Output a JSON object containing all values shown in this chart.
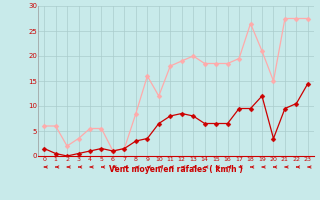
{
  "x": [
    0,
    1,
    2,
    3,
    4,
    5,
    6,
    7,
    8,
    9,
    10,
    11,
    12,
    13,
    14,
    15,
    16,
    17,
    18,
    19,
    20,
    21,
    22,
    23
  ],
  "y_moyen": [
    1.5,
    0.5,
    0.0,
    0.5,
    1.0,
    1.5,
    1.0,
    1.5,
    3.0,
    3.5,
    6.5,
    8.0,
    8.5,
    8.0,
    6.5,
    6.5,
    6.5,
    9.5,
    9.5,
    12.0,
    3.5,
    9.5,
    10.5,
    14.5
  ],
  "y_rafales": [
    6.0,
    6.0,
    2.0,
    3.5,
    5.5,
    5.5,
    1.0,
    1.5,
    8.5,
    16.0,
    12.0,
    18.0,
    19.0,
    20.0,
    18.5,
    18.5,
    18.5,
    19.5,
    26.5,
    21.0,
    15.0,
    27.5,
    27.5,
    27.5
  ],
  "xlim": [
    -0.5,
    23.5
  ],
  "ylim": [
    0,
    30
  ],
  "yticks": [
    0,
    5,
    10,
    15,
    20,
    25,
    30
  ],
  "xticks": [
    0,
    1,
    2,
    3,
    4,
    5,
    6,
    7,
    8,
    9,
    10,
    11,
    12,
    13,
    14,
    15,
    16,
    17,
    18,
    19,
    20,
    21,
    22,
    23
  ],
  "xlabel": "Vent moyen/en rafales ( km/h )",
  "color_moyen": "#cc0000",
  "color_rafales": "#ffaaaa",
  "bg_color": "#c8eaea",
  "grid_color": "#aacccc",
  "marker_size": 2.5,
  "line_width": 0.9
}
